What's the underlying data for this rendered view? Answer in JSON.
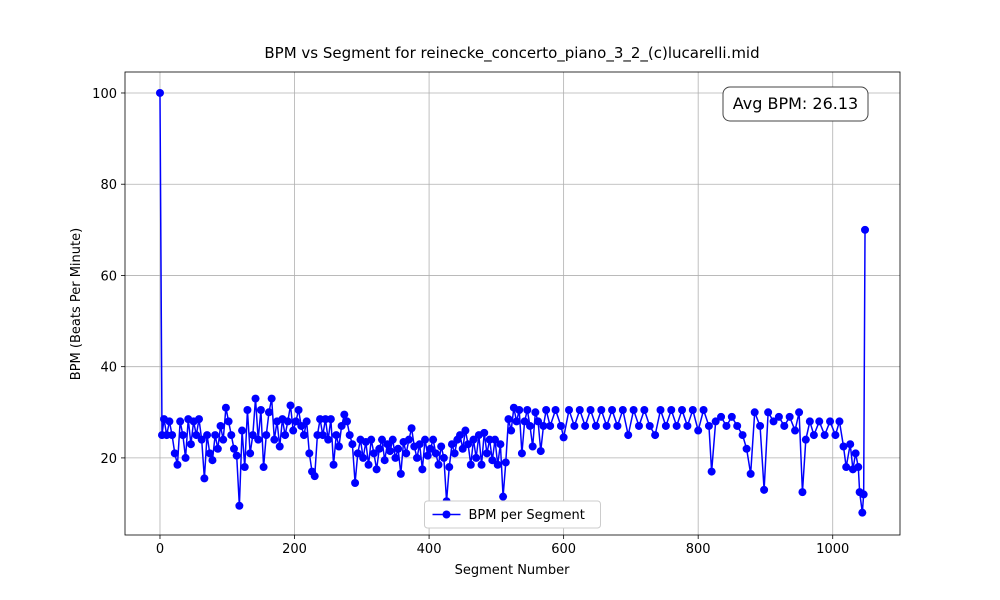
{
  "chart_data": {
    "type": "line",
    "title": "BPM vs Segment for reinecke_concerto_piano_3_2_(c)lucarelli.mid",
    "x_label": "Segment Number",
    "y_label": "BPM (Beats Per Minute)",
    "annotation": "Avg BPM: 26.13",
    "xlim": [
      -52,
      1100
    ],
    "ylim": [
      3.1,
      104.6
    ],
    "xticks": [
      0,
      200,
      400,
      600,
      800,
      1000
    ],
    "yticks": [
      20,
      40,
      60,
      80,
      100
    ],
    "grid": true,
    "legend": "lower center",
    "x": [
      0,
      3,
      6,
      10,
      14,
      18,
      22,
      26,
      30,
      34,
      38,
      42,
      46,
      50,
      54,
      58,
      62,
      66,
      70,
      74,
      78,
      82,
      86,
      90,
      94,
      98,
      102,
      106,
      110,
      114,
      118,
      122,
      126,
      130,
      134,
      138,
      142,
      146,
      150,
      154,
      158,
      162,
      166,
      170,
      174,
      178,
      182,
      186,
      190,
      194,
      198,
      202,
      206,
      210,
      214,
      218,
      222,
      226,
      230,
      234,
      238,
      242,
      246,
      250,
      254,
      258,
      262,
      266,
      270,
      274,
      278,
      282,
      286,
      290,
      294,
      298,
      302,
      306,
      310,
      314,
      318,
      322,
      326,
      330,
      334,
      338,
      342,
      346,
      350,
      354,
      358,
      362,
      366,
      370,
      374,
      378,
      382,
      386,
      390,
      394,
      398,
      402,
      406,
      410,
      414,
      418,
      422,
      426,
      430,
      434,
      438,
      442,
      446,
      450,
      454,
      458,
      462,
      466,
      470,
      474,
      478,
      482,
      486,
      490,
      494,
      498,
      502,
      506,
      510,
      514,
      518,
      522,
      526,
      530,
      534,
      538,
      542,
      546,
      550,
      554,
      558,
      562,
      566,
      570,
      574,
      580,
      588,
      596,
      600,
      608,
      616,
      624,
      632,
      640,
      648,
      656,
      664,
      672,
      680,
      688,
      696,
      704,
      712,
      720,
      728,
      736,
      744,
      752,
      760,
      768,
      776,
      784,
      792,
      800,
      808,
      816,
      820,
      826,
      834,
      842,
      850,
      858,
      866,
      872,
      878,
      884,
      892,
      898,
      904,
      912,
      920,
      928,
      936,
      944,
      950,
      955,
      960,
      966,
      972,
      980,
      988,
      996,
      1004,
      1010,
      1016,
      1020,
      1026,
      1030,
      1034,
      1038,
      1040,
      1044,
      1046,
      1048
    ],
    "series": [
      {
        "name": "BPM per Segment",
        "color": "#0000ff",
        "values": [
          100,
          25,
          28.5,
          25,
          28,
          25,
          21,
          18.5,
          28,
          25,
          20,
          28.5,
          23,
          28,
          25,
          28.5,
          24,
          15.5,
          25,
          21,
          19.5,
          25,
          22,
          27,
          24,
          31,
          28,
          25,
          22,
          20.5,
          9.5,
          26,
          18,
          30.5,
          21,
          25,
          33,
          24,
          30.5,
          18,
          25,
          30,
          33,
          24,
          28,
          22.5,
          28.5,
          25,
          28,
          31.5,
          26,
          28,
          30.5,
          27,
          25,
          28,
          21,
          17,
          16,
          25,
          28.5,
          25,
          28.5,
          24,
          28.5,
          18.5,
          25,
          22.5,
          27,
          29.5,
          28,
          25,
          23,
          14.5,
          21,
          24,
          20,
          23.5,
          18.5,
          24,
          21,
          17.5,
          22,
          24,
          19.5,
          23,
          21.5,
          24,
          20,
          22,
          16.5,
          23.5,
          21,
          24,
          26.5,
          22.5,
          20,
          23,
          17.5,
          24,
          20.5,
          22,
          24,
          21,
          18.5,
          22.5,
          20,
          10.5,
          18,
          23,
          21,
          24,
          25,
          22,
          26,
          23,
          18.5,
          24,
          20,
          25,
          18.5,
          25.5,
          21,
          24,
          19.5,
          24,
          18.5,
          23,
          11.5,
          19,
          28.5,
          26,
          31,
          28,
          30.5,
          21,
          28,
          30.5,
          27,
          22.5,
          30,
          28,
          21.5,
          27,
          30.5,
          27,
          30.5,
          27,
          24.5,
          30.5,
          27,
          30.5,
          27,
          30.5,
          27,
          30.5,
          27,
          30.5,
          27,
          30.5,
          25,
          30.5,
          27,
          30.5,
          27,
          25,
          30.5,
          27,
          30.5,
          27,
          30.5,
          27,
          30.5,
          26,
          30.5,
          27,
          17,
          28,
          29,
          27,
          29,
          27,
          25,
          22,
          16.5,
          30,
          27,
          13,
          30,
          28,
          29,
          27,
          29,
          26,
          30,
          12.5,
          24,
          28,
          25,
          28,
          25,
          28,
          25,
          28,
          22.5,
          18,
          23,
          17.5,
          21,
          18,
          12.5,
          8,
          12,
          70
        ]
      }
    ]
  }
}
